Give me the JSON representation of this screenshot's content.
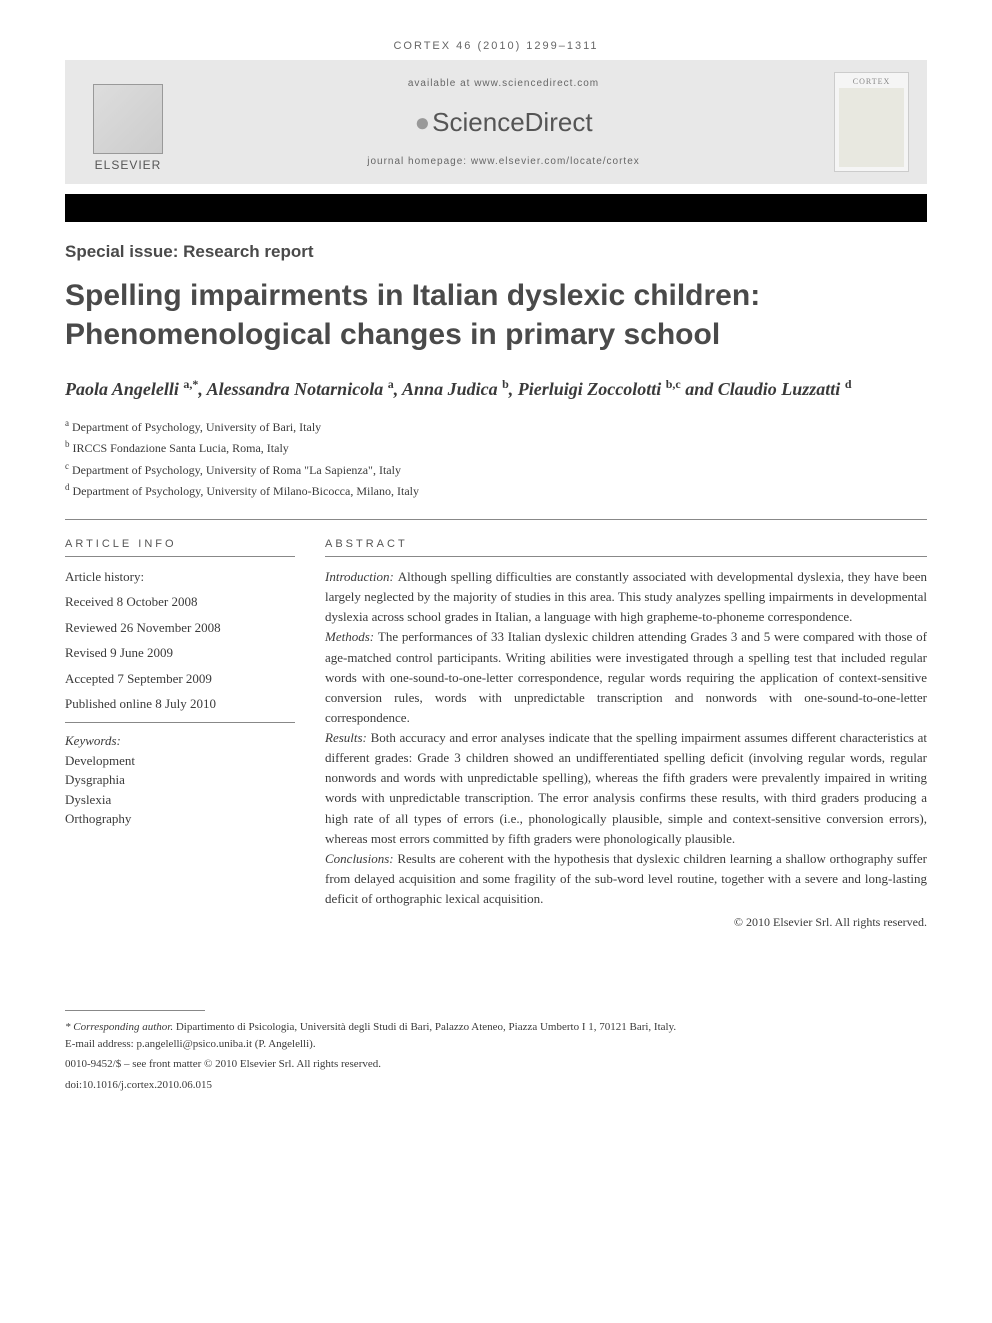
{
  "citation": "CORTEX 46 (2010) 1299–1311",
  "header": {
    "available": "available at www.sciencedirect.com",
    "sciencedirect": "ScienceDirect",
    "homepage": "journal homepage: www.elsevier.com/locate/cortex",
    "publisher": "ELSEVIER",
    "journal_cover_title": "CORTEX"
  },
  "article_type": "Special issue: Research report",
  "title": "Spelling impairments in Italian dyslexic children: Phenomenological changes in primary school",
  "authors_html": "Paola Angelelli <sup>a,*</sup>, Alessandra Notarnicola <sup>a</sup>, Anna Judica <sup>b</sup>, Pierluigi Zoccolotti <sup>b,c</sup> and Claudio Luzzatti <sup>d</sup>",
  "affiliations": [
    {
      "sup": "a",
      "text": "Department of Psychology, University of Bari, Italy"
    },
    {
      "sup": "b",
      "text": "IRCCS Fondazione Santa Lucia, Roma, Italy"
    },
    {
      "sup": "c",
      "text": "Department of Psychology, University of Roma \"La Sapienza\", Italy"
    },
    {
      "sup": "d",
      "text": "Department of Psychology, University of Milano-Bicocca, Milano, Italy"
    }
  ],
  "article_info": {
    "heading": "ARTICLE INFO",
    "history_label": "Article history:",
    "history": [
      "Received 8 October 2008",
      "Reviewed 26 November 2008",
      "Revised 9 June 2009",
      "Accepted 7 September 2009",
      "Published online 8 July 2010"
    ],
    "keywords_label": "Keywords:",
    "keywords": [
      "Development",
      "Dysgraphia",
      "Dyslexia",
      "Orthography"
    ]
  },
  "abstract": {
    "heading": "ABSTRACT",
    "sections": [
      {
        "label": "Introduction:",
        "text": "Although spelling difficulties are constantly associated with developmental dyslexia, they have been largely neglected by the majority of studies in this area. This study analyzes spelling impairments in developmental dyslexia across school grades in Italian, a language with high grapheme-to-phoneme correspondence."
      },
      {
        "label": "Methods:",
        "text": "The performances of 33 Italian dyslexic children attending Grades 3 and 5 were compared with those of age-matched control participants. Writing abilities were investigated through a spelling test that included regular words with one-sound-to-one-letter correspondence, regular words requiring the application of context-sensitive conversion rules, words with unpredictable transcription and nonwords with one-sound-to-one-letter correspondence."
      },
      {
        "label": "Results:",
        "text": "Both accuracy and error analyses indicate that the spelling impairment assumes different characteristics at different grades: Grade 3 children showed an undifferentiated spelling deficit (involving regular words, regular nonwords and words with unpredictable spelling), whereas the fifth graders were prevalently impaired in writing words with unpredictable transcription. The error analysis confirms these results, with third graders producing a high rate of all types of errors (i.e., phonologically plausible, simple and context-sensitive conversion errors), whereas most errors committed by fifth graders were phonologically plausible."
      },
      {
        "label": "Conclusions:",
        "text": "Results are coherent with the hypothesis that dyslexic children learning a shallow orthography suffer from delayed acquisition and some fragility of the sub-word level routine, together with a severe and long-lasting deficit of orthographic lexical acquisition."
      }
    ],
    "copyright": "© 2010 Elsevier Srl. All rights reserved."
  },
  "footer": {
    "corresponding_label": "* Corresponding author.",
    "corresponding_text": "Dipartimento di Psicologia, Università degli Studi di Bari, Palazzo Ateneo, Piazza Umberto I 1, 70121 Bari, Italy.",
    "email_label": "E-mail address:",
    "email": "p.angelelli@psico.uniba.it",
    "email_name": "(P. Angelelli).",
    "issn": "0010-9452/$ – see front matter © 2010 Elsevier Srl. All rights reserved.",
    "doi": "doi:10.1016/j.cortex.2010.06.015"
  },
  "colors": {
    "header_bg": "#e8e8e8",
    "text": "#3a3a3a",
    "heading": "#4a4a4a",
    "black_bar": "#000000",
    "divider": "#888888"
  },
  "typography": {
    "title_fontsize": 30,
    "authors_fontsize": 18,
    "body_fontsize": 13,
    "heading_letterspacing": 3
  }
}
